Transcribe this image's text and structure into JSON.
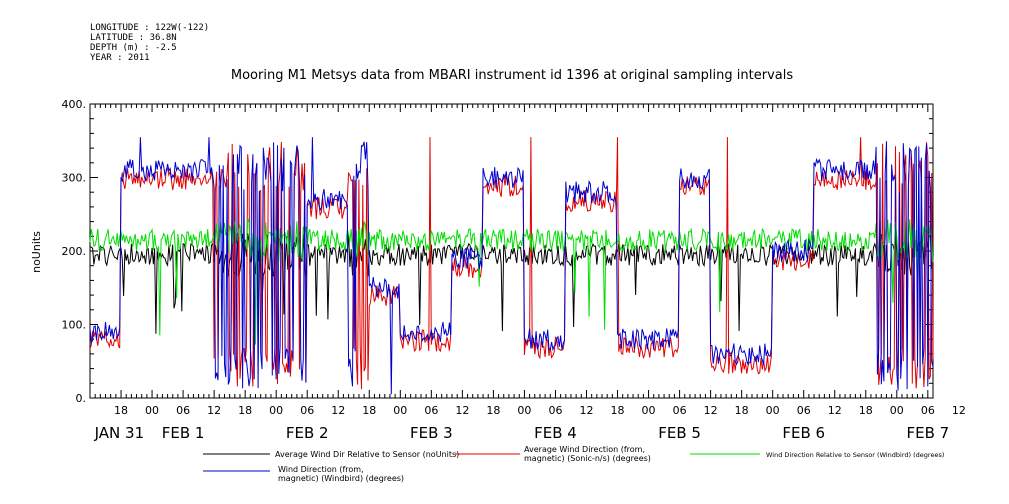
{
  "header": {
    "longitude": "LONGITUDE : 122W(-122)",
    "latitude": "LATITUDE : 36.8N",
    "depth": "DEPTH (m) : -2.5",
    "year": "YEAR : 2011"
  },
  "chart_data": {
    "type": "line",
    "title": "Mooring M1 Metsys data from MBARI instrument id 1396 at original sampling intervals",
    "ylabel": "noUnits",
    "xlabel": "",
    "ylim": [
      0,
      400
    ],
    "yticks": [
      "0.",
      "100.",
      "200.",
      "300.",
      "400."
    ],
    "xlim_hours_from_jan31_00": [
      12,
      175
    ],
    "hour_ticks": [
      "18",
      "00",
      "06",
      "12",
      "18",
      "00",
      "06",
      "12",
      "18",
      "00",
      "06",
      "12",
      "18",
      "00",
      "06",
      "12",
      "18",
      "00",
      "06",
      "12",
      "18",
      "00",
      "06",
      "12",
      "18",
      "00",
      "06",
      "12"
    ],
    "date_labels": [
      "JAN 31",
      "FEB  1",
      "FEB  2",
      "FEB  3",
      "FEB  4",
      "FEB  5",
      "FEB  6",
      "FEB  7"
    ],
    "series": [
      {
        "name": "Average Wind Dir Relative to Sensor (noUnits)",
        "color": "#000000",
        "mode": "relative",
        "base": 195
      },
      {
        "name": "Average Wind Direction (from, magnetic) (Sonic-n/s) (degrees)",
        "color": "#e00000",
        "mode": "absolute",
        "offset": -12
      },
      {
        "name": "Wind Direction Relative to Sensor (Windbird) (degrees)",
        "color": "#00dd00",
        "mode": "relative",
        "base": 215
      },
      {
        "name": "Wind Direction (from, magnetic) (Windbird) (degrees)",
        "color": "#0000d0",
        "mode": "absolute",
        "offset": 0
      }
    ],
    "segments": [
      {
        "x": [
          12,
          18
        ],
        "level": 90,
        "style": "low"
      },
      {
        "x": [
          18,
          36
        ],
        "level": 310,
        "style": "high"
      },
      {
        "x": [
          36,
          54
        ],
        "level": 200,
        "style": "switching"
      },
      {
        "x": [
          54,
          62
        ],
        "level": 270,
        "style": "high"
      },
      {
        "x": [
          62,
          66
        ],
        "level": 200,
        "style": "switching"
      },
      {
        "x": [
          66,
          72
        ],
        "level": 150,
        "style": "low"
      },
      {
        "x": [
          72,
          82
        ],
        "level": 90,
        "style": "low"
      },
      {
        "x": [
          82,
          88
        ],
        "level": 190,
        "style": "mid"
      },
      {
        "x": [
          88,
          96
        ],
        "level": 300,
        "style": "high"
      },
      {
        "x": [
          96,
          104
        ],
        "level": 80,
        "style": "low"
      },
      {
        "x": [
          104,
          114
        ],
        "level": 280,
        "style": "high"
      },
      {
        "x": [
          114,
          126
        ],
        "level": 80,
        "style": "low"
      },
      {
        "x": [
          126,
          132
        ],
        "level": 300,
        "style": "high"
      },
      {
        "x": [
          132,
          144
        ],
        "level": 60,
        "style": "low"
      },
      {
        "x": [
          144,
          152
        ],
        "level": 200,
        "style": "mid"
      },
      {
        "x": [
          152,
          164
        ],
        "level": 310,
        "style": "high"
      },
      {
        "x": [
          164,
          175
        ],
        "level": 200,
        "style": "switching"
      }
    ]
  }
}
